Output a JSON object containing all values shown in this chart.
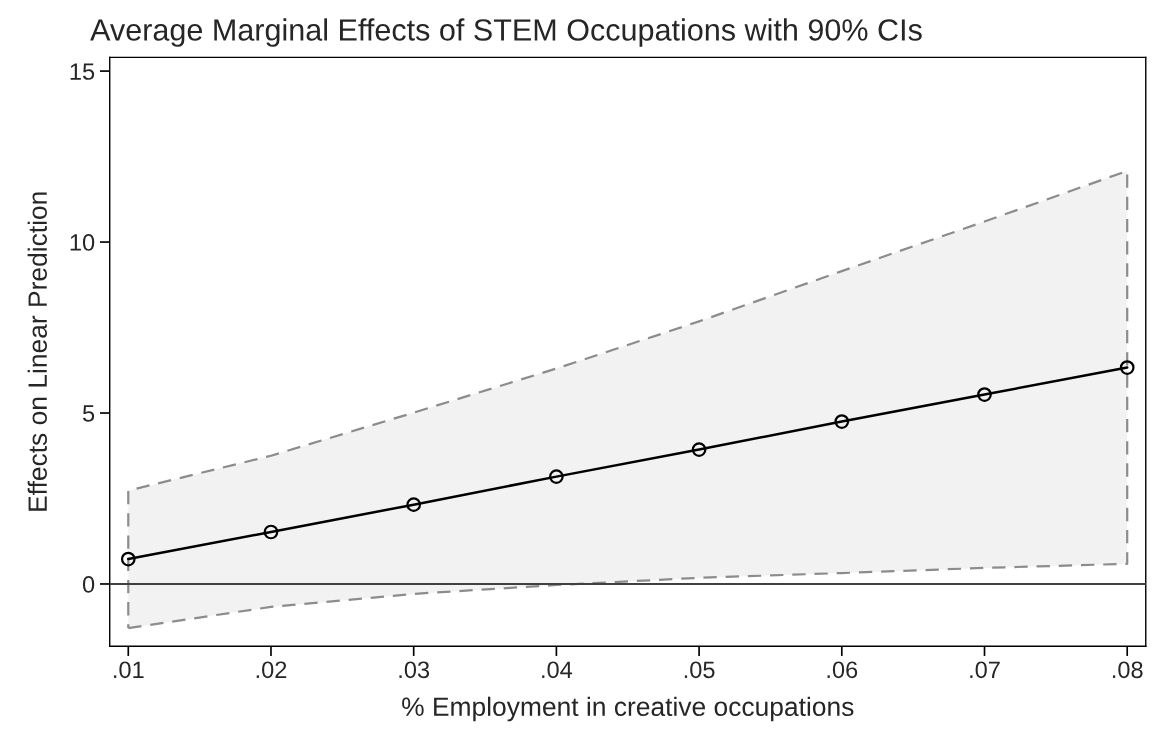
{
  "chart_data": {
    "type": "line",
    "title": "Average Marginal Effects of STEM Occupations with 90% CIs",
    "xlabel": "% Employment in creative occupations",
    "ylabel": "Effects on Linear Prediction",
    "x": [
      0.01,
      0.02,
      0.03,
      0.04,
      0.05,
      0.06,
      0.07,
      0.08
    ],
    "series": [
      {
        "color": "#000000",
        "values": [
          0.73,
          1.52,
          2.32,
          3.14,
          3.93,
          4.75,
          5.54,
          6.33
        ],
        "lower": [
          -1.29,
          -0.67,
          -0.29,
          -0.03,
          0.18,
          0.32,
          0.47,
          0.59
        ],
        "upper": [
          2.73,
          3.75,
          5.01,
          6.3,
          7.68,
          9.15,
          10.6,
          12.08
        ]
      }
    ],
    "xlim": [
      0.0087,
      0.0813
    ],
    "xticks": [
      {
        "value": 0.01,
        "label": ".01"
      },
      {
        "value": 0.02,
        "label": ".02"
      },
      {
        "value": 0.03,
        "label": ".03"
      },
      {
        "value": 0.04,
        "label": ".04"
      },
      {
        "value": 0.05,
        "label": ".05"
      },
      {
        "value": 0.06,
        "label": ".06"
      },
      {
        "value": 0.07,
        "label": ".07"
      },
      {
        "value": 0.08,
        "label": ".08"
      }
    ],
    "ylim": [
      -1.82,
      15.4
    ],
    "yticks": [
      0,
      5,
      10,
      15
    ],
    "ref_lines": [
      {
        "axis": "y",
        "value": 0,
        "color": "#404040"
      }
    ],
    "marker": "circle",
    "line_style": "solid",
    "grid": false,
    "legend": false
  }
}
